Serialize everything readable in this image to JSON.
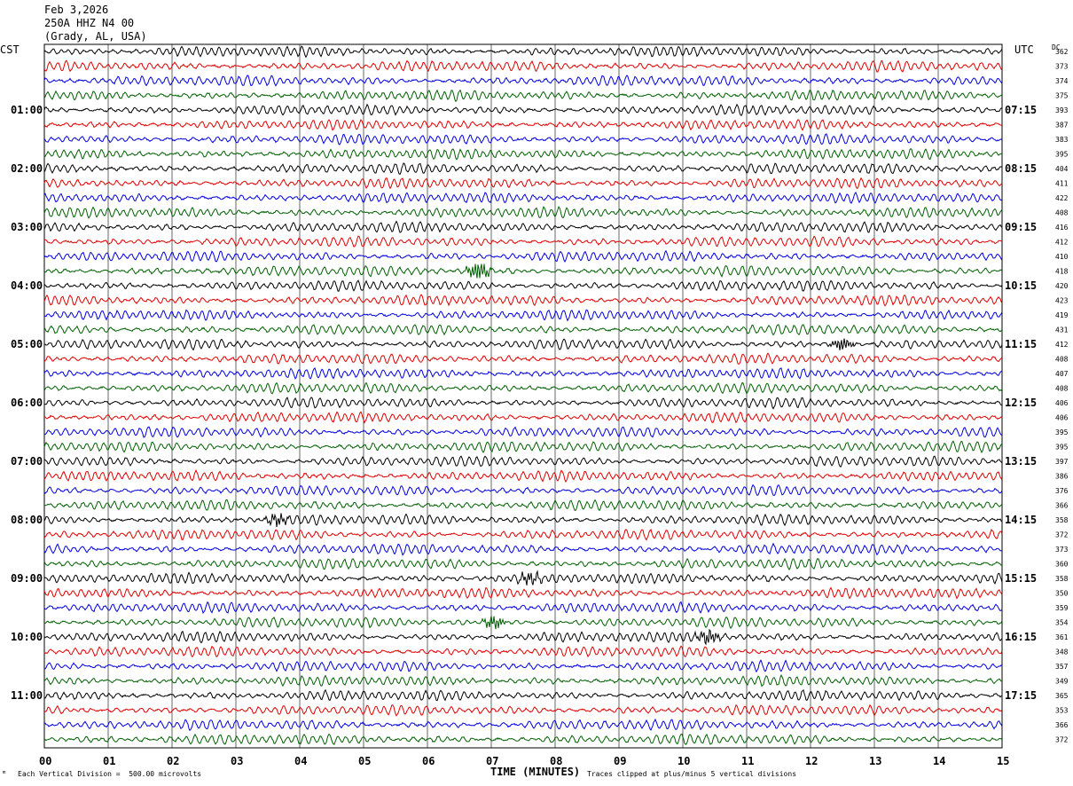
{
  "header": {
    "date": "Feb 3,2026",
    "station": "250A HHZ N4 00",
    "location": "(Grady, AL, USA)"
  },
  "left_zone": "CST",
  "right_zone": "UTC",
  "dc_label": "DC",
  "footer": {
    "scale_text": "Each Vertical Division =  500.00 microvolts",
    "clip_text": "Traces clipped at plus/minus 5 vertical divisions"
  },
  "colors": {
    "trace_cycle": [
      "#000000",
      "#e00000",
      "#0000e0",
      "#006000"
    ],
    "grid": "#000000"
  },
  "chart_data": {
    "type": "line",
    "xlabel": "TIME (MINUTES)",
    "x_ticks": [
      "00",
      "01",
      "02",
      "03",
      "04",
      "05",
      "06",
      "07",
      "08",
      "09",
      "10",
      "11",
      "12",
      "13",
      "14",
      "15"
    ],
    "xlim": [
      0,
      15
    ],
    "left_hour_labels": [
      "01:00",
      "02:00",
      "03:00",
      "04:00",
      "05:00",
      "06:00",
      "07:00",
      "08:00",
      "09:00",
      "10:00",
      "11:00"
    ],
    "right_hour_labels": [
      "07:15",
      "08:15",
      "09:15",
      "10:15",
      "11:15",
      "12:15",
      "13:15",
      "14:15",
      "15:15",
      "16:15",
      "17:15"
    ],
    "dc_offsets": [
      362,
      373,
      374,
      375,
      393,
      387,
      383,
      395,
      404,
      411,
      422,
      408,
      416,
      412,
      410,
      418,
      420,
      423,
      419,
      431,
      412,
      408,
      407,
      408,
      406,
      406,
      395,
      395,
      397,
      386,
      376,
      366,
      358,
      372,
      373,
      360,
      358,
      350,
      359,
      354,
      361,
      348,
      357,
      349,
      365,
      353,
      366,
      372
    ],
    "events": [
      {
        "trace": 15,
        "minute": 6.8,
        "amplitude": 2.2
      },
      {
        "trace": 20,
        "minute": 12.5,
        "amplitude": 1.3
      },
      {
        "trace": 32,
        "minute": 3.65,
        "amplitude": 1.2
      },
      {
        "trace": 36,
        "minute": 7.6,
        "amplitude": 1.2
      },
      {
        "trace": 39,
        "minute": 7.05,
        "amplitude": 1.4
      },
      {
        "trace": 40,
        "minute": 10.4,
        "amplitude": 1.5
      }
    ]
  }
}
